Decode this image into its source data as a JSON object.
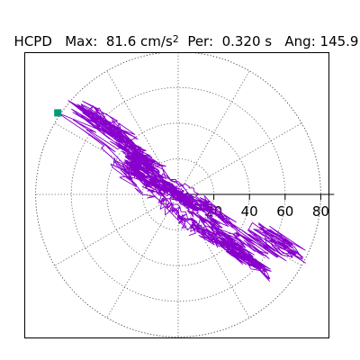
{
  "header": {
    "name": "HCPD",
    "max_label": "Max:",
    "max_value": "81.6",
    "max_unit": "cm/s",
    "max_unit_exp": "2",
    "per_label": "Per:",
    "per_value": "0.320 s",
    "ang_label": "Ang:",
    "ang_value": "145.9"
  },
  "chart_data": {
    "type": "polar",
    "radial_ticks": [
      20,
      40,
      60,
      80
    ],
    "radial_tick_labels": [
      "20",
      "40",
      "60",
      "80"
    ],
    "radial_max": 85,
    "angular_grid_step_deg": 30,
    "grid": true,
    "series": [
      {
        "color": "#8800cc",
        "peak": {
          "amplitude": 81.6,
          "angle_deg": 145.9
        }
      }
    ],
    "peak_marker_color": "#009977"
  }
}
